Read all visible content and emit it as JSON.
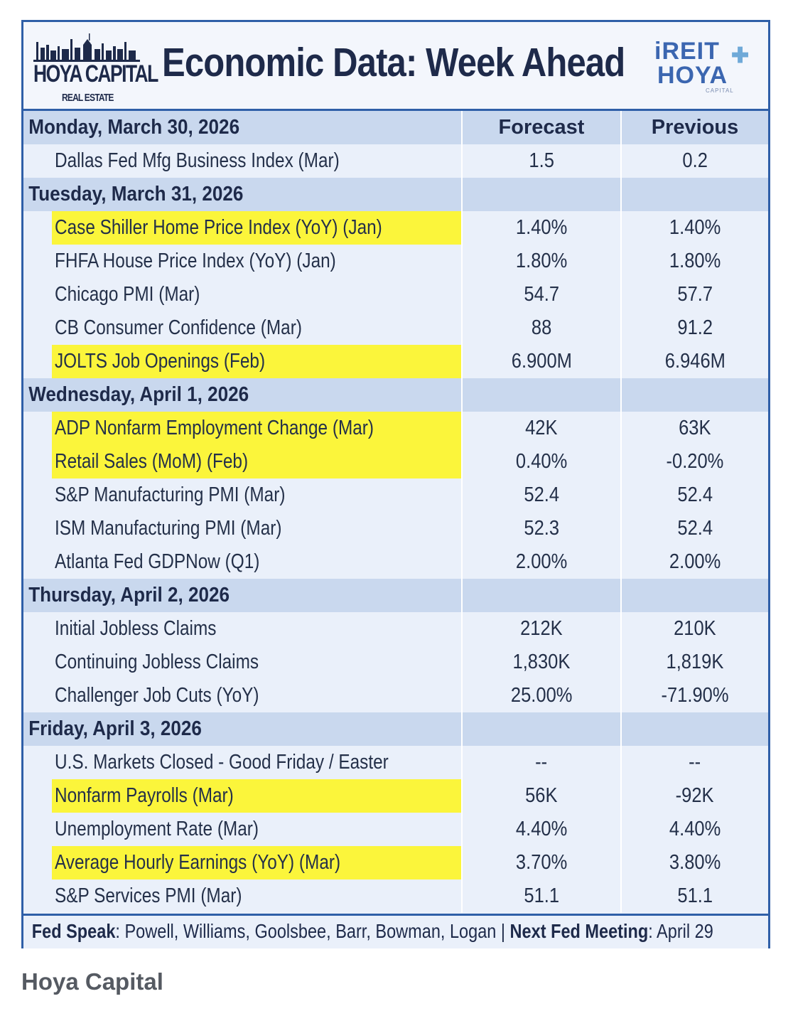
{
  "header": {
    "logo_left_brand": "HOYA CAPITAL",
    "logo_left_sub": "REAL ESTATE",
    "title": "Economic Data: Week Ahead",
    "logo_right_line1": "iREIT",
    "logo_right_line2": "HOYA",
    "logo_right_line3": "CAPITAL"
  },
  "columns": {
    "forecast": "Forecast",
    "previous": "Previous"
  },
  "days": [
    {
      "label": "Monday, March 30, 2026",
      "items": [
        {
          "name": "Dallas Fed Mfg Business Index (Mar)",
          "forecast": "1.5",
          "previous": "0.2",
          "highlight": false
        }
      ]
    },
    {
      "label": "Tuesday, March 31, 2026",
      "items": [
        {
          "name": "Case Shiller Home Price Index (YoY) (Jan)",
          "forecast": "1.40%",
          "previous": "1.40%",
          "highlight": true
        },
        {
          "name": "FHFA House Price Index (YoY) (Jan)",
          "forecast": "1.80%",
          "previous": "1.80%",
          "highlight": false
        },
        {
          "name": "Chicago PMI (Mar)",
          "forecast": "54.7",
          "previous": "57.7",
          "highlight": false
        },
        {
          "name": "CB Consumer Confidence (Mar)",
          "forecast": "88",
          "previous": "91.2",
          "highlight": false
        },
        {
          "name": "JOLTS Job Openings (Feb)",
          "forecast": "6.900M",
          "previous": "6.946M",
          "highlight": true
        }
      ]
    },
    {
      "label": "Wednesday, April 1, 2026",
      "items": [
        {
          "name": "ADP Nonfarm Employment Change (Mar)",
          "forecast": "42K",
          "previous": "63K",
          "highlight": true
        },
        {
          "name": "Retail Sales (MoM) (Feb)",
          "forecast": "0.40%",
          "previous": "-0.20%",
          "highlight": true
        },
        {
          "name": "S&P Manufacturing PMI (Mar)",
          "forecast": "52.4",
          "previous": "52.4",
          "highlight": false
        },
        {
          "name": "ISM Manufacturing PMI (Mar)",
          "forecast": "52.3",
          "previous": "52.4",
          "highlight": false
        },
        {
          "name": "Atlanta Fed GDPNow (Q1)",
          "forecast": "2.00%",
          "previous": "2.00%",
          "highlight": false
        }
      ]
    },
    {
      "label": "Thursday, April 2, 2026",
      "items": [
        {
          "name": "Initial Jobless Claims",
          "forecast": "212K",
          "previous": "210K",
          "highlight": false
        },
        {
          "name": "Continuing Jobless Claims",
          "forecast": "1,830K",
          "previous": "1,819K",
          "highlight": false
        },
        {
          "name": "Challenger Job Cuts (YoY)",
          "forecast": "25.00%",
          "previous": "-71.90%",
          "highlight": false
        }
      ]
    },
    {
      "label": "Friday, April 3, 2026",
      "items": [
        {
          "name": "U.S. Markets Closed - Good Friday / Easter",
          "forecast": "--",
          "previous": "--",
          "highlight": false
        },
        {
          "name": "Nonfarm Payrolls (Mar)",
          "forecast": "56K",
          "previous": "-92K",
          "highlight": true
        },
        {
          "name": "Unemployment Rate (Mar)",
          "forecast": "4.40%",
          "previous": "4.40%",
          "highlight": false
        },
        {
          "name": "Average Hourly Earnings (YoY) (Mar)",
          "forecast": "3.70%",
          "previous": "3.80%",
          "highlight": true
        },
        {
          "name": "S&P Services PMI (Mar)",
          "forecast": "51.1",
          "previous": "51.1",
          "highlight": false
        }
      ]
    }
  ],
  "footer": {
    "fed_speak_label": "Fed Speak",
    "fed_speak_value": ": Powell, Williams, Goolsbee, Barr, Bowman, Logan | ",
    "next_meeting_label": "Next Fed Meeting",
    "next_meeting_value": ": April 29"
  },
  "caption": "Hoya Capital",
  "colors": {
    "border": "#2f5fa8",
    "day_bg": "#c9d8ee",
    "highlight": "#fbf53b",
    "text": "#1e2a4a"
  }
}
